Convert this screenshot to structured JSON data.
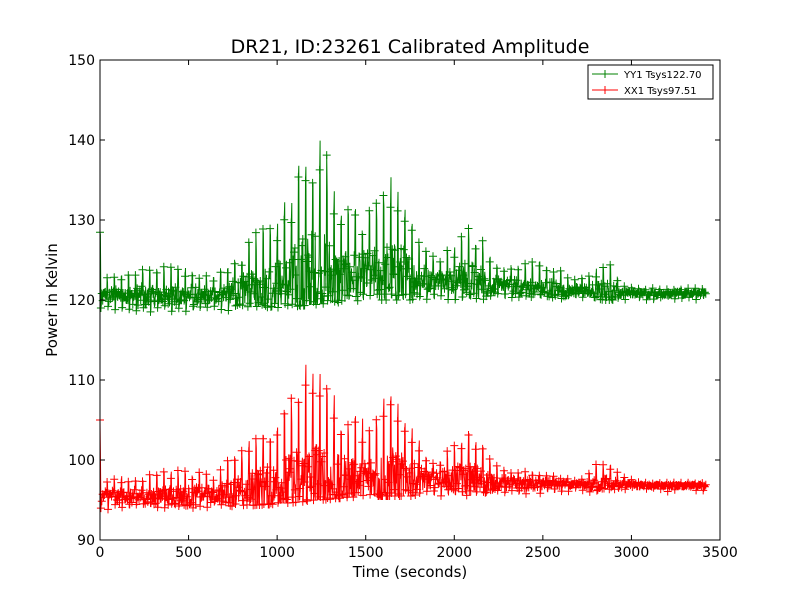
{
  "chart_data": {
    "type": "line",
    "title": "DR21, ID:23261 Calibrated Amplitude",
    "xlabel": "Time (seconds)",
    "ylabel": "Power in Kelvin",
    "xlim": [
      0,
      3500
    ],
    "ylim": [
      90,
      150
    ],
    "xticks": [
      "0",
      "500",
      "1000",
      "1500",
      "2000",
      "2500",
      "3000",
      "3500"
    ],
    "yticks": [
      "90",
      "100",
      "110",
      "120",
      "130",
      "140",
      "150"
    ],
    "marker": "+",
    "grid": false,
    "legend_position": "upper right",
    "series": [
      {
        "name": "YY1 Tsys122.70",
        "color": "#008000",
        "baseline": [
          [
            0,
            120.5
          ],
          [
            300,
            120.5
          ],
          [
            600,
            120.5
          ],
          [
            800,
            121
          ],
          [
            1000,
            122
          ],
          [
            1500,
            123
          ],
          [
            2000,
            122.5
          ],
          [
            2400,
            121.5
          ],
          [
            2800,
            121
          ],
          [
            3100,
            120.8
          ],
          [
            3420,
            120.8
          ]
        ],
        "upper_envelope": [
          [
            0,
            131.3
          ],
          [
            10,
            123
          ],
          [
            100,
            123
          ],
          [
            300,
            124.5
          ],
          [
            500,
            124
          ],
          [
            650,
            123
          ],
          [
            760,
            125.5
          ],
          [
            900,
            129
          ],
          [
            1000,
            130
          ],
          [
            1100,
            135.5
          ],
          [
            1160,
            140
          ],
          [
            1210,
            140.5
          ],
          [
            1270,
            139.5
          ],
          [
            1330,
            134
          ],
          [
            1400,
            132
          ],
          [
            1500,
            131.5
          ],
          [
            1580,
            133
          ],
          [
            1640,
            136
          ],
          [
            1700,
            134.5
          ],
          [
            1780,
            129
          ],
          [
            1900,
            125
          ],
          [
            2000,
            127
          ],
          [
            2080,
            129.5
          ],
          [
            2160,
            127.5
          ],
          [
            2250,
            124
          ],
          [
            2500,
            125
          ],
          [
            2700,
            122.5
          ],
          [
            2800,
            124
          ],
          [
            2880,
            124.5
          ],
          [
            2950,
            122
          ],
          [
            3050,
            121.5
          ],
          [
            3420,
            121.5
          ]
        ],
        "lower_envelope": [
          [
            0,
            118.5
          ],
          [
            600,
            118.5
          ],
          [
            1000,
            119
          ],
          [
            1500,
            120
          ],
          [
            2000,
            120
          ],
          [
            2500,
            120
          ],
          [
            3000,
            120
          ],
          [
            3420,
            120
          ]
        ]
      },
      {
        "name": "XX1 Tsys97.51",
        "color": "#ff0000",
        "baseline": [
          [
            0,
            95.5
          ],
          [
            300,
            95.5
          ],
          [
            600,
            95.5
          ],
          [
            800,
            96
          ],
          [
            1000,
            96.5
          ],
          [
            1500,
            97.5
          ],
          [
            2000,
            97.5
          ],
          [
            2400,
            97
          ],
          [
            2800,
            97
          ],
          [
            3100,
            96.8
          ],
          [
            3420,
            96.8
          ]
        ],
        "upper_envelope": [
          [
            0,
            105
          ],
          [
            10,
            97.5
          ],
          [
            100,
            98
          ],
          [
            300,
            98.5
          ],
          [
            500,
            99
          ],
          [
            650,
            98
          ],
          [
            760,
            101
          ],
          [
            900,
            104
          ],
          [
            1000,
            105
          ],
          [
            1100,
            110
          ],
          [
            1160,
            113
          ],
          [
            1220,
            114
          ],
          [
            1280,
            111
          ],
          [
            1330,
            108
          ],
          [
            1400,
            106
          ],
          [
            1500,
            105
          ],
          [
            1580,
            107
          ],
          [
            1640,
            110
          ],
          [
            1700,
            108
          ],
          [
            1780,
            103
          ],
          [
            1900,
            100
          ],
          [
            2000,
            102
          ],
          [
            2080,
            103.5
          ],
          [
            2160,
            102
          ],
          [
            2250,
            99
          ],
          [
            2500,
            98.5
          ],
          [
            2700,
            97.5
          ],
          [
            2800,
            99.5
          ],
          [
            2880,
            99.5
          ],
          [
            2950,
            98
          ],
          [
            3050,
            97.2
          ],
          [
            3420,
            97.2
          ]
        ],
        "lower_envelope": [
          [
            0,
            93.8
          ],
          [
            600,
            94
          ],
          [
            1000,
            94.5
          ],
          [
            1500,
            95.5
          ],
          [
            2000,
            95.5
          ],
          [
            2500,
            95.8
          ],
          [
            3000,
            96
          ],
          [
            3420,
            96
          ]
        ]
      }
    ]
  }
}
